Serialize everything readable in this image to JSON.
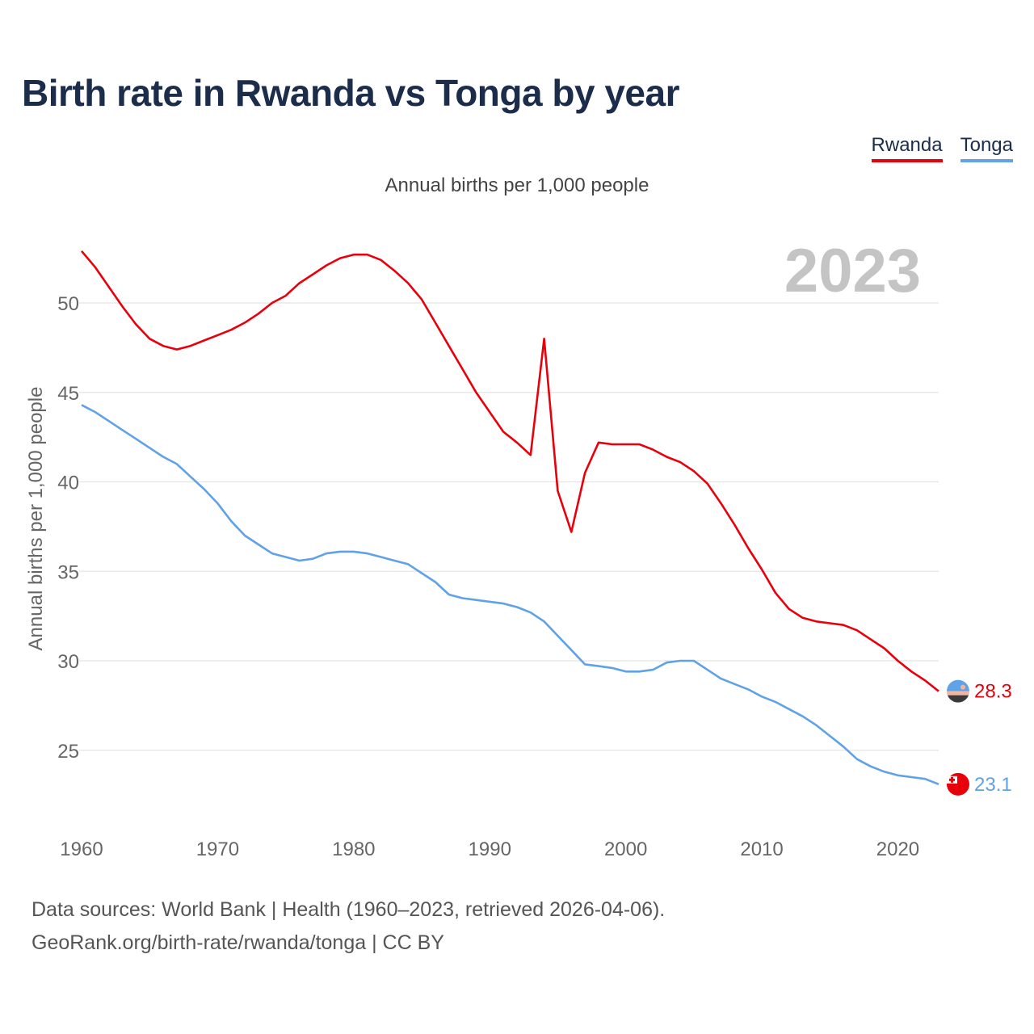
{
  "title": "Birth rate in Rwanda vs Tonga by year",
  "subtitle": "Annual births per 1,000 people",
  "year_label": "2023",
  "legend": [
    {
      "name": "Rwanda",
      "color": "#e8000b"
    },
    {
      "name": "Tonga",
      "color": "#5fa2e8"
    }
  ],
  "source_line1": "Data sources: World Bank | Health (1960–2023, retrieved 2026-04-06).",
  "source_line2": "GeoRank.org/birth-rate/rwanda/tonga | CC BY",
  "chart_data": {
    "type": "line",
    "title": "Birth rate in Rwanda vs Tonga by year",
    "xlabel": "",
    "ylabel": "Annual births per 1,000 people",
    "xlim": [
      1960,
      2023
    ],
    "ylim": [
      21,
      54
    ],
    "xticks": [
      1960,
      1970,
      1980,
      1990,
      2000,
      2010,
      2020
    ],
    "yticks": [
      25,
      30,
      35,
      40,
      45,
      50
    ],
    "grid": true,
    "x": [
      1960,
      1961,
      1962,
      1963,
      1964,
      1965,
      1966,
      1967,
      1968,
      1969,
      1970,
      1971,
      1972,
      1973,
      1974,
      1975,
      1976,
      1977,
      1978,
      1979,
      1980,
      1981,
      1982,
      1983,
      1984,
      1985,
      1986,
      1987,
      1988,
      1989,
      1990,
      1991,
      1992,
      1993,
      1994,
      1995,
      1996,
      1997,
      1998,
      1999,
      2000,
      2001,
      2002,
      2003,
      2004,
      2005,
      2006,
      2007,
      2008,
      2009,
      2010,
      2011,
      2012,
      2013,
      2014,
      2015,
      2016,
      2017,
      2018,
      2019,
      2020,
      2021,
      2022,
      2023
    ],
    "series": [
      {
        "name": "Rwanda",
        "color": "#e8000b",
        "end_label": "28.3",
        "values": [
          52.9,
          52.0,
          50.9,
          49.8,
          48.8,
          48.0,
          47.6,
          47.4,
          47.6,
          47.9,
          48.2,
          48.5,
          48.9,
          49.4,
          50.0,
          50.4,
          51.1,
          51.6,
          52.1,
          52.5,
          52.7,
          52.7,
          52.4,
          51.8,
          51.1,
          50.2,
          48.9,
          47.6,
          46.3,
          45.0,
          43.9,
          42.8,
          42.2,
          41.5,
          48.0,
          39.5,
          37.2,
          40.5,
          42.2,
          42.1,
          42.1,
          42.1,
          41.8,
          41.4,
          41.1,
          40.6,
          39.9,
          38.8,
          37.6,
          36.3,
          35.1,
          33.8,
          32.9,
          32.4,
          32.2,
          32.1,
          32.0,
          31.7,
          31.2,
          30.7,
          30.0,
          29.4,
          28.9,
          28.3
        ]
      },
      {
        "name": "Tonga",
        "color": "#5fa2e8",
        "end_label": "23.1",
        "values": [
          44.3,
          43.9,
          43.4,
          42.9,
          42.4,
          41.9,
          41.4,
          41.0,
          40.3,
          39.6,
          38.8,
          37.8,
          37.0,
          36.5,
          36.0,
          35.8,
          35.6,
          35.7,
          36.0,
          36.1,
          36.1,
          36.0,
          35.8,
          35.6,
          35.4,
          34.9,
          34.4,
          33.7,
          33.5,
          33.4,
          33.3,
          33.2,
          33.0,
          32.7,
          32.2,
          31.4,
          30.6,
          29.8,
          29.7,
          29.6,
          29.4,
          29.4,
          29.5,
          29.9,
          30.0,
          30.0,
          29.5,
          29.0,
          28.7,
          28.4,
          28.0,
          27.7,
          27.3,
          26.9,
          26.4,
          25.8,
          25.2,
          24.5,
          24.1,
          23.8,
          23.6,
          23.5,
          23.4,
          23.1
        ]
      }
    ]
  }
}
